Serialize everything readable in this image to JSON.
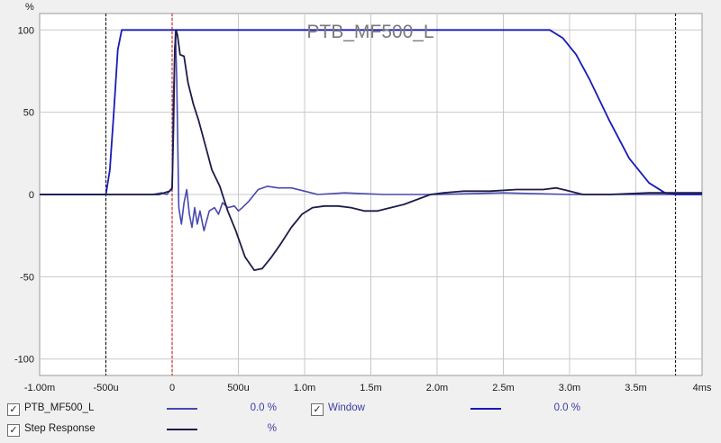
{
  "chart_data": {
    "type": "line",
    "title": "PTB_MF500_L",
    "ylabel": "%",
    "xlim_ms": [
      -1.0,
      4.0
    ],
    "ylim": [
      -110,
      110
    ],
    "x_tick_labels": [
      "-1.00m",
      "-500u",
      "0",
      "500u",
      "1.0m",
      "1.5m",
      "2.0m",
      "2.5m",
      "3.0m",
      "3.5m",
      "4ms"
    ],
    "x_tick_values": [
      -1.0,
      -0.5,
      0,
      0.5,
      1.0,
      1.5,
      2.0,
      2.5,
      3.0,
      3.5,
      4.0
    ],
    "y_tick_labels": [
      "100",
      "50",
      "0",
      "-50",
      "-100"
    ],
    "y_tick_values": [
      100,
      50,
      0,
      -50,
      -100
    ],
    "grid": true,
    "markers": [
      {
        "x": -0.5,
        "style": "dashed",
        "color": "#000000"
      },
      {
        "x": 0.0,
        "style": "dashed",
        "color": "#cc0000"
      },
      {
        "x": 3.8,
        "style": "dashed",
        "color": "#000000"
      }
    ],
    "series": [
      {
        "name": "PTB_MF500_L",
        "color": "#4848b0",
        "points": [
          [
            -1.0,
            0
          ],
          [
            -0.15,
            0
          ],
          [
            -0.08,
            1
          ],
          [
            -0.04,
            0
          ],
          [
            -0.02,
            2
          ],
          [
            0.0,
            3
          ],
          [
            0.01,
            60
          ],
          [
            0.025,
            99
          ],
          [
            0.035,
            70
          ],
          [
            0.05,
            -8
          ],
          [
            0.07,
            -18
          ],
          [
            0.09,
            -5
          ],
          [
            0.11,
            3
          ],
          [
            0.13,
            -12
          ],
          [
            0.15,
            -20
          ],
          [
            0.17,
            -8
          ],
          [
            0.19,
            -18
          ],
          [
            0.21,
            -10
          ],
          [
            0.24,
            -22
          ],
          [
            0.28,
            -10
          ],
          [
            0.32,
            -8
          ],
          [
            0.35,
            -12
          ],
          [
            0.38,
            -5
          ],
          [
            0.42,
            -8
          ],
          [
            0.47,
            -7
          ],
          [
            0.5,
            -10
          ],
          [
            0.53,
            -8
          ],
          [
            0.58,
            -4
          ],
          [
            0.65,
            3
          ],
          [
            0.72,
            5
          ],
          [
            0.8,
            4
          ],
          [
            0.9,
            4
          ],
          [
            1.0,
            2
          ],
          [
            1.1,
            0
          ],
          [
            1.3,
            1
          ],
          [
            1.6,
            0
          ],
          [
            2.0,
            0
          ],
          [
            2.5,
            1
          ],
          [
            3.0,
            0
          ],
          [
            3.5,
            0
          ],
          [
            4.0,
            0
          ]
        ]
      },
      {
        "name": "Window",
        "color": "#1a1ab8",
        "points": [
          [
            -1.0,
            0
          ],
          [
            -0.5,
            0
          ],
          [
            -0.47,
            15
          ],
          [
            -0.44,
            50
          ],
          [
            -0.41,
            88
          ],
          [
            -0.38,
            100
          ],
          [
            2.85,
            100
          ],
          [
            2.95,
            95
          ],
          [
            3.05,
            85
          ],
          [
            3.15,
            70
          ],
          [
            3.3,
            45
          ],
          [
            3.45,
            22
          ],
          [
            3.6,
            7
          ],
          [
            3.72,
            1
          ],
          [
            3.8,
            0
          ],
          [
            4.0,
            0
          ]
        ]
      },
      {
        "name": "Step Response",
        "color": "#1c1c4a",
        "points": [
          [
            -1.0,
            0
          ],
          [
            -0.1,
            0
          ],
          [
            -0.02,
            2
          ],
          [
            0.0,
            4
          ],
          [
            0.01,
            40
          ],
          [
            0.02,
            88
          ],
          [
            0.03,
            100
          ],
          [
            0.04,
            97
          ],
          [
            0.06,
            85
          ],
          [
            0.09,
            84
          ],
          [
            0.12,
            68
          ],
          [
            0.16,
            55
          ],
          [
            0.2,
            45
          ],
          [
            0.25,
            30
          ],
          [
            0.3,
            15
          ],
          [
            0.36,
            5
          ],
          [
            0.42,
            -10
          ],
          [
            0.48,
            -22
          ],
          [
            0.55,
            -38
          ],
          [
            0.62,
            -46
          ],
          [
            0.68,
            -45
          ],
          [
            0.75,
            -38
          ],
          [
            0.82,
            -30
          ],
          [
            0.9,
            -20
          ],
          [
            0.98,
            -12
          ],
          [
            1.06,
            -8
          ],
          [
            1.15,
            -7
          ],
          [
            1.25,
            -7
          ],
          [
            1.35,
            -8
          ],
          [
            1.45,
            -10
          ],
          [
            1.55,
            -10
          ],
          [
            1.65,
            -8
          ],
          [
            1.75,
            -6
          ],
          [
            1.85,
            -3
          ],
          [
            1.95,
            0
          ],
          [
            2.05,
            1
          ],
          [
            2.2,
            2
          ],
          [
            2.4,
            2
          ],
          [
            2.6,
            3
          ],
          [
            2.8,
            3
          ],
          [
            2.9,
            4
          ],
          [
            3.0,
            2
          ],
          [
            3.1,
            0
          ],
          [
            3.3,
            0
          ],
          [
            3.6,
            1
          ],
          [
            4.0,
            1
          ]
        ]
      }
    ]
  },
  "legend": [
    {
      "id": "ptb",
      "label": "PTB_MF500_L",
      "value": "0.0 %",
      "checked": "✓",
      "color": "#4848b0"
    },
    {
      "id": "window",
      "label": "Window",
      "value": "0.0 %",
      "checked": "✓",
      "color": "#1a1ab8"
    },
    {
      "id": "step",
      "label": "Step Response",
      "value": "%",
      "checked": "✓",
      "color": "#1c1c4a"
    }
  ]
}
